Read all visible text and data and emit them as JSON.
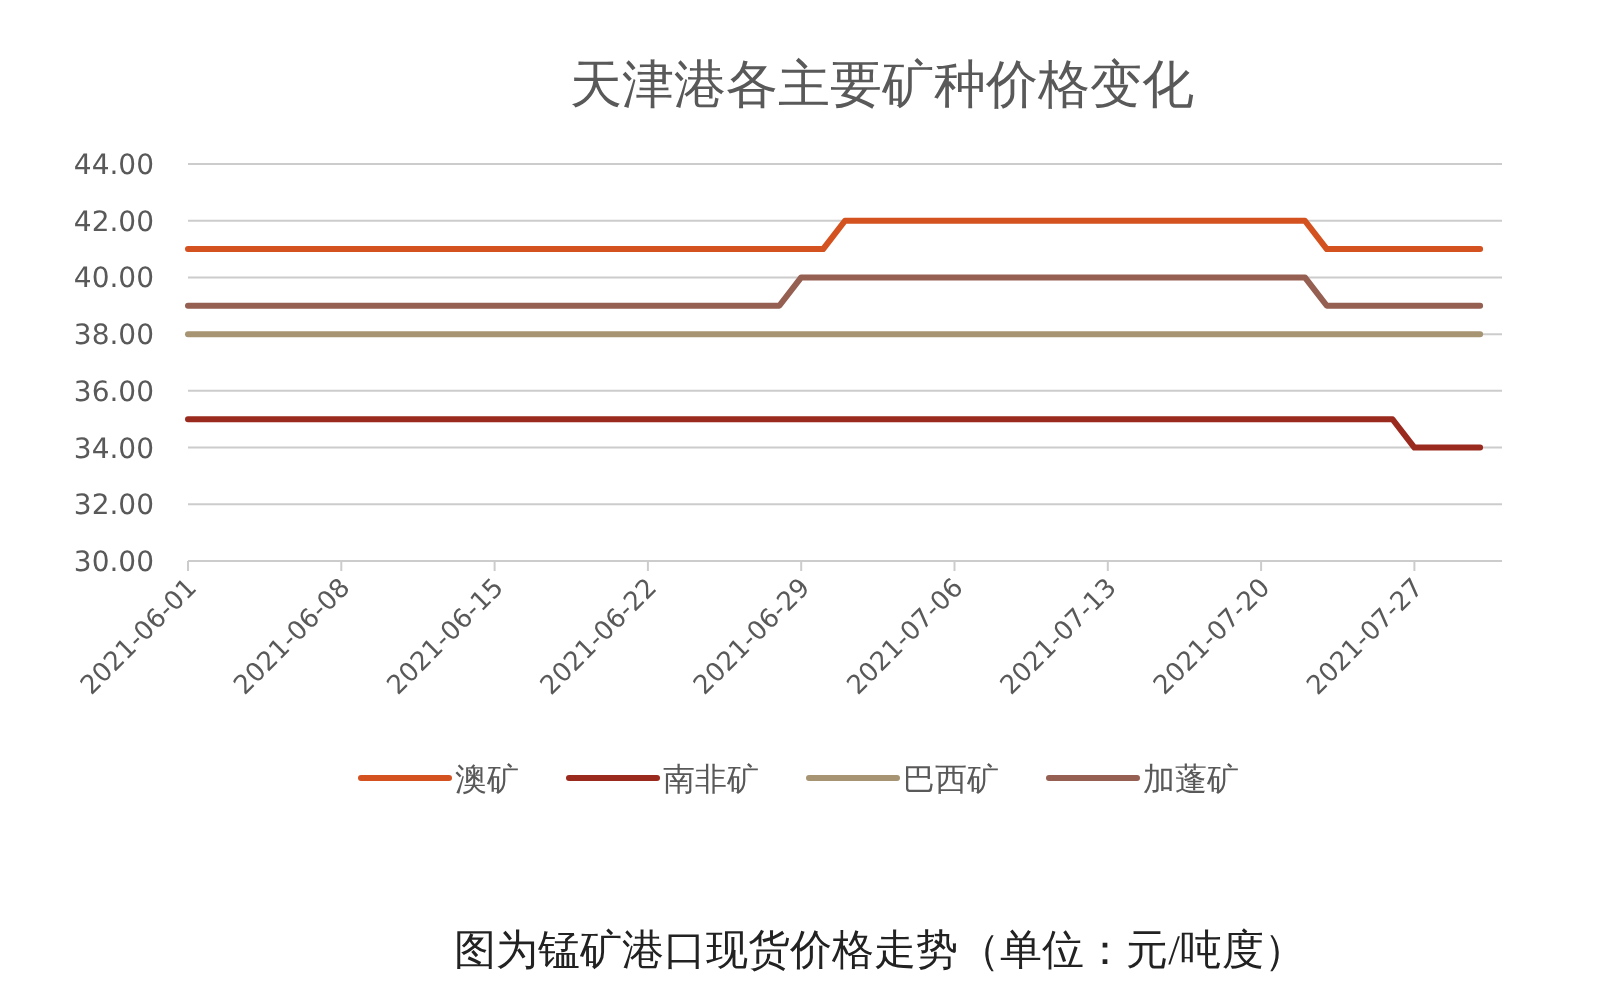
{
  "chart_data": {
    "type": "line",
    "title": "天津港各主要矿种价格变化",
    "series": [
      {
        "name": "澳矿",
        "color": "#d4521f",
        "x": [
          "2021-06-01",
          "2021-06-30",
          "2021-07-01",
          "2021-07-22",
          "2021-07-23",
          "2021-07-30"
        ],
        "values": [
          41,
          41,
          42,
          42,
          41,
          41
        ]
      },
      {
        "name": "南非矿",
        "color": "#9b2a1e",
        "x": [
          "2021-06-01",
          "2021-07-26",
          "2021-07-27",
          "2021-07-30"
        ],
        "values": [
          35,
          35,
          34,
          34
        ]
      },
      {
        "name": "巴西矿",
        "color": "#a69473",
        "x": [
          "2021-06-01",
          "2021-07-30"
        ],
        "values": [
          38,
          38
        ]
      },
      {
        "name": "加蓬矿",
        "color": "#955f51",
        "x": [
          "2021-06-01",
          "2021-06-28",
          "2021-06-29",
          "2021-07-22",
          "2021-07-23",
          "2021-07-30"
        ],
        "values": [
          39,
          39,
          40,
          40,
          39,
          39
        ]
      }
    ],
    "xlim": [
      "2021-06-01",
      "2021-07-31"
    ],
    "xticks": [
      "2021-06-01",
      "2021-06-08",
      "2021-06-15",
      "2021-06-22",
      "2021-06-29",
      "2021-07-06",
      "2021-07-13",
      "2021-07-20",
      "2021-07-27"
    ],
    "ylim": [
      30,
      44
    ],
    "yticks": [
      {
        "value": 30,
        "label": "30.00"
      },
      {
        "value": 32,
        "label": "32.00"
      },
      {
        "value": 34,
        "label": "34.00"
      },
      {
        "value": 36,
        "label": "36.00"
      },
      {
        "value": 38,
        "label": "38.00"
      },
      {
        "value": 40,
        "label": "40.00"
      },
      {
        "value": 42,
        "label": "42.00"
      },
      {
        "value": 44,
        "label": "44.00"
      }
    ],
    "grid": "y",
    "legend": "bottom",
    "annotations": [
      "图为锰矿港口现货价格走势（单位：元/吨度）"
    ]
  }
}
